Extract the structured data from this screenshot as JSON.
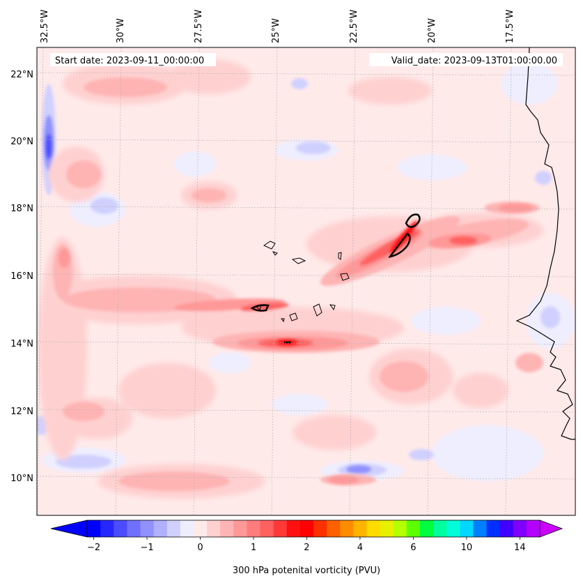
{
  "header": {
    "start_date": "Start date: 2023-09-11_00:00:00",
    "valid_date": "Valid_date: 2023-09-13T01:00:00.00"
  },
  "map": {
    "lon_labels": [
      "32.5°W",
      "30°W",
      "27.5°W",
      "25°W",
      "22.5°W",
      "20°W",
      "17.5°W"
    ],
    "lat_labels": [
      "22°N",
      "20°N",
      "18°N",
      "16°N",
      "14°N",
      "12°N",
      "10°N"
    ],
    "features": [
      "Cabo Verde islands",
      "West African coastline"
    ]
  },
  "colorbar": {
    "label": "300 hPa potenital vorticity (PVU)",
    "ticks": [
      "−2",
      "−1",
      "0",
      "1",
      "2",
      "4",
      "6",
      "10",
      "14"
    ],
    "colors": [
      "#0000ff",
      "#2626ff",
      "#4c4cff",
      "#7070ff",
      "#9090ff",
      "#b0b0ff",
      "#d0d0ff",
      "#eeeeff",
      "#ffeaea",
      "#ffd0d0",
      "#ffb4b4",
      "#ff9898",
      "#ff7c7c",
      "#ff6060",
      "#ff3838",
      "#ff1010",
      "#ff0000",
      "#ff3000",
      "#ff6000",
      "#ff8c00",
      "#ffb400",
      "#ffdc00",
      "#e8f000",
      "#b4ff00",
      "#5cff00",
      "#00ff40",
      "#00ff9c",
      "#00ffd8",
      "#00d8ff",
      "#0080ff",
      "#0030ff",
      "#4000ff",
      "#8000ff",
      "#b400ff"
    ],
    "under_color": "#0000ff",
    "over_color": "#cc00ff"
  }
}
